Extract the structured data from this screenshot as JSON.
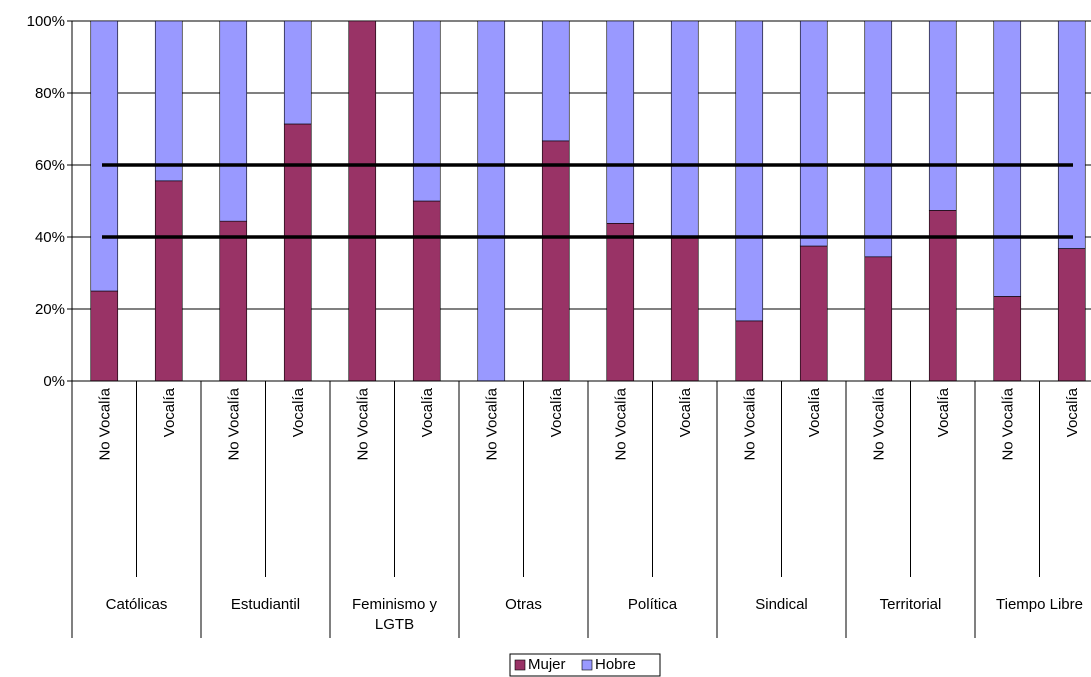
{
  "chart_data": {
    "type": "bar",
    "stacked": true,
    "percent": true,
    "groups": [
      "Católicas",
      "Estudiantil",
      "Feminismo y LGTB",
      "Otras",
      "Política",
      "Sindical",
      "Territorial",
      "Tiempo Libre"
    ],
    "subcategories": [
      "No Vocalía",
      "Vocalía"
    ],
    "categories": [
      "No Vocalía",
      "Vocalía",
      "No Vocalía",
      "Vocalía",
      "No Vocalía",
      "Vocalía",
      "No Vocalía",
      "Vocalía",
      "No Vocalía",
      "Vocalía",
      "No Vocalía",
      "Vocalía",
      "No Vocalía",
      "Vocalía",
      "No Vocalía",
      "Vocalía"
    ],
    "series": [
      {
        "name": "Mujer",
        "color": "#993366",
        "values": [
          25,
          55.6,
          44.4,
          71.4,
          100,
          50,
          0,
          66.7,
          43.8,
          40,
          16.7,
          37.5,
          34.5,
          47.4,
          23.5,
          36.8
        ]
      },
      {
        "name": "Hobre",
        "color": "#9999ff",
        "values": [
          75,
          44.4,
          55.6,
          28.6,
          0,
          50,
          100,
          33.3,
          56.2,
          60,
          83.3,
          62.5,
          65.5,
          52.6,
          76.5,
          63.2
        ]
      }
    ],
    "reference_lines": [
      60,
      40
    ],
    "ylim": [
      0,
      100
    ],
    "yticks": [
      "0%",
      "20%",
      "40%",
      "60%",
      "80%",
      "100%"
    ],
    "grid": true,
    "legend": {
      "position": "bottom",
      "items": [
        "Mujer",
        "Hobre"
      ]
    },
    "title": "",
    "xlabel": "",
    "ylabel": ""
  }
}
